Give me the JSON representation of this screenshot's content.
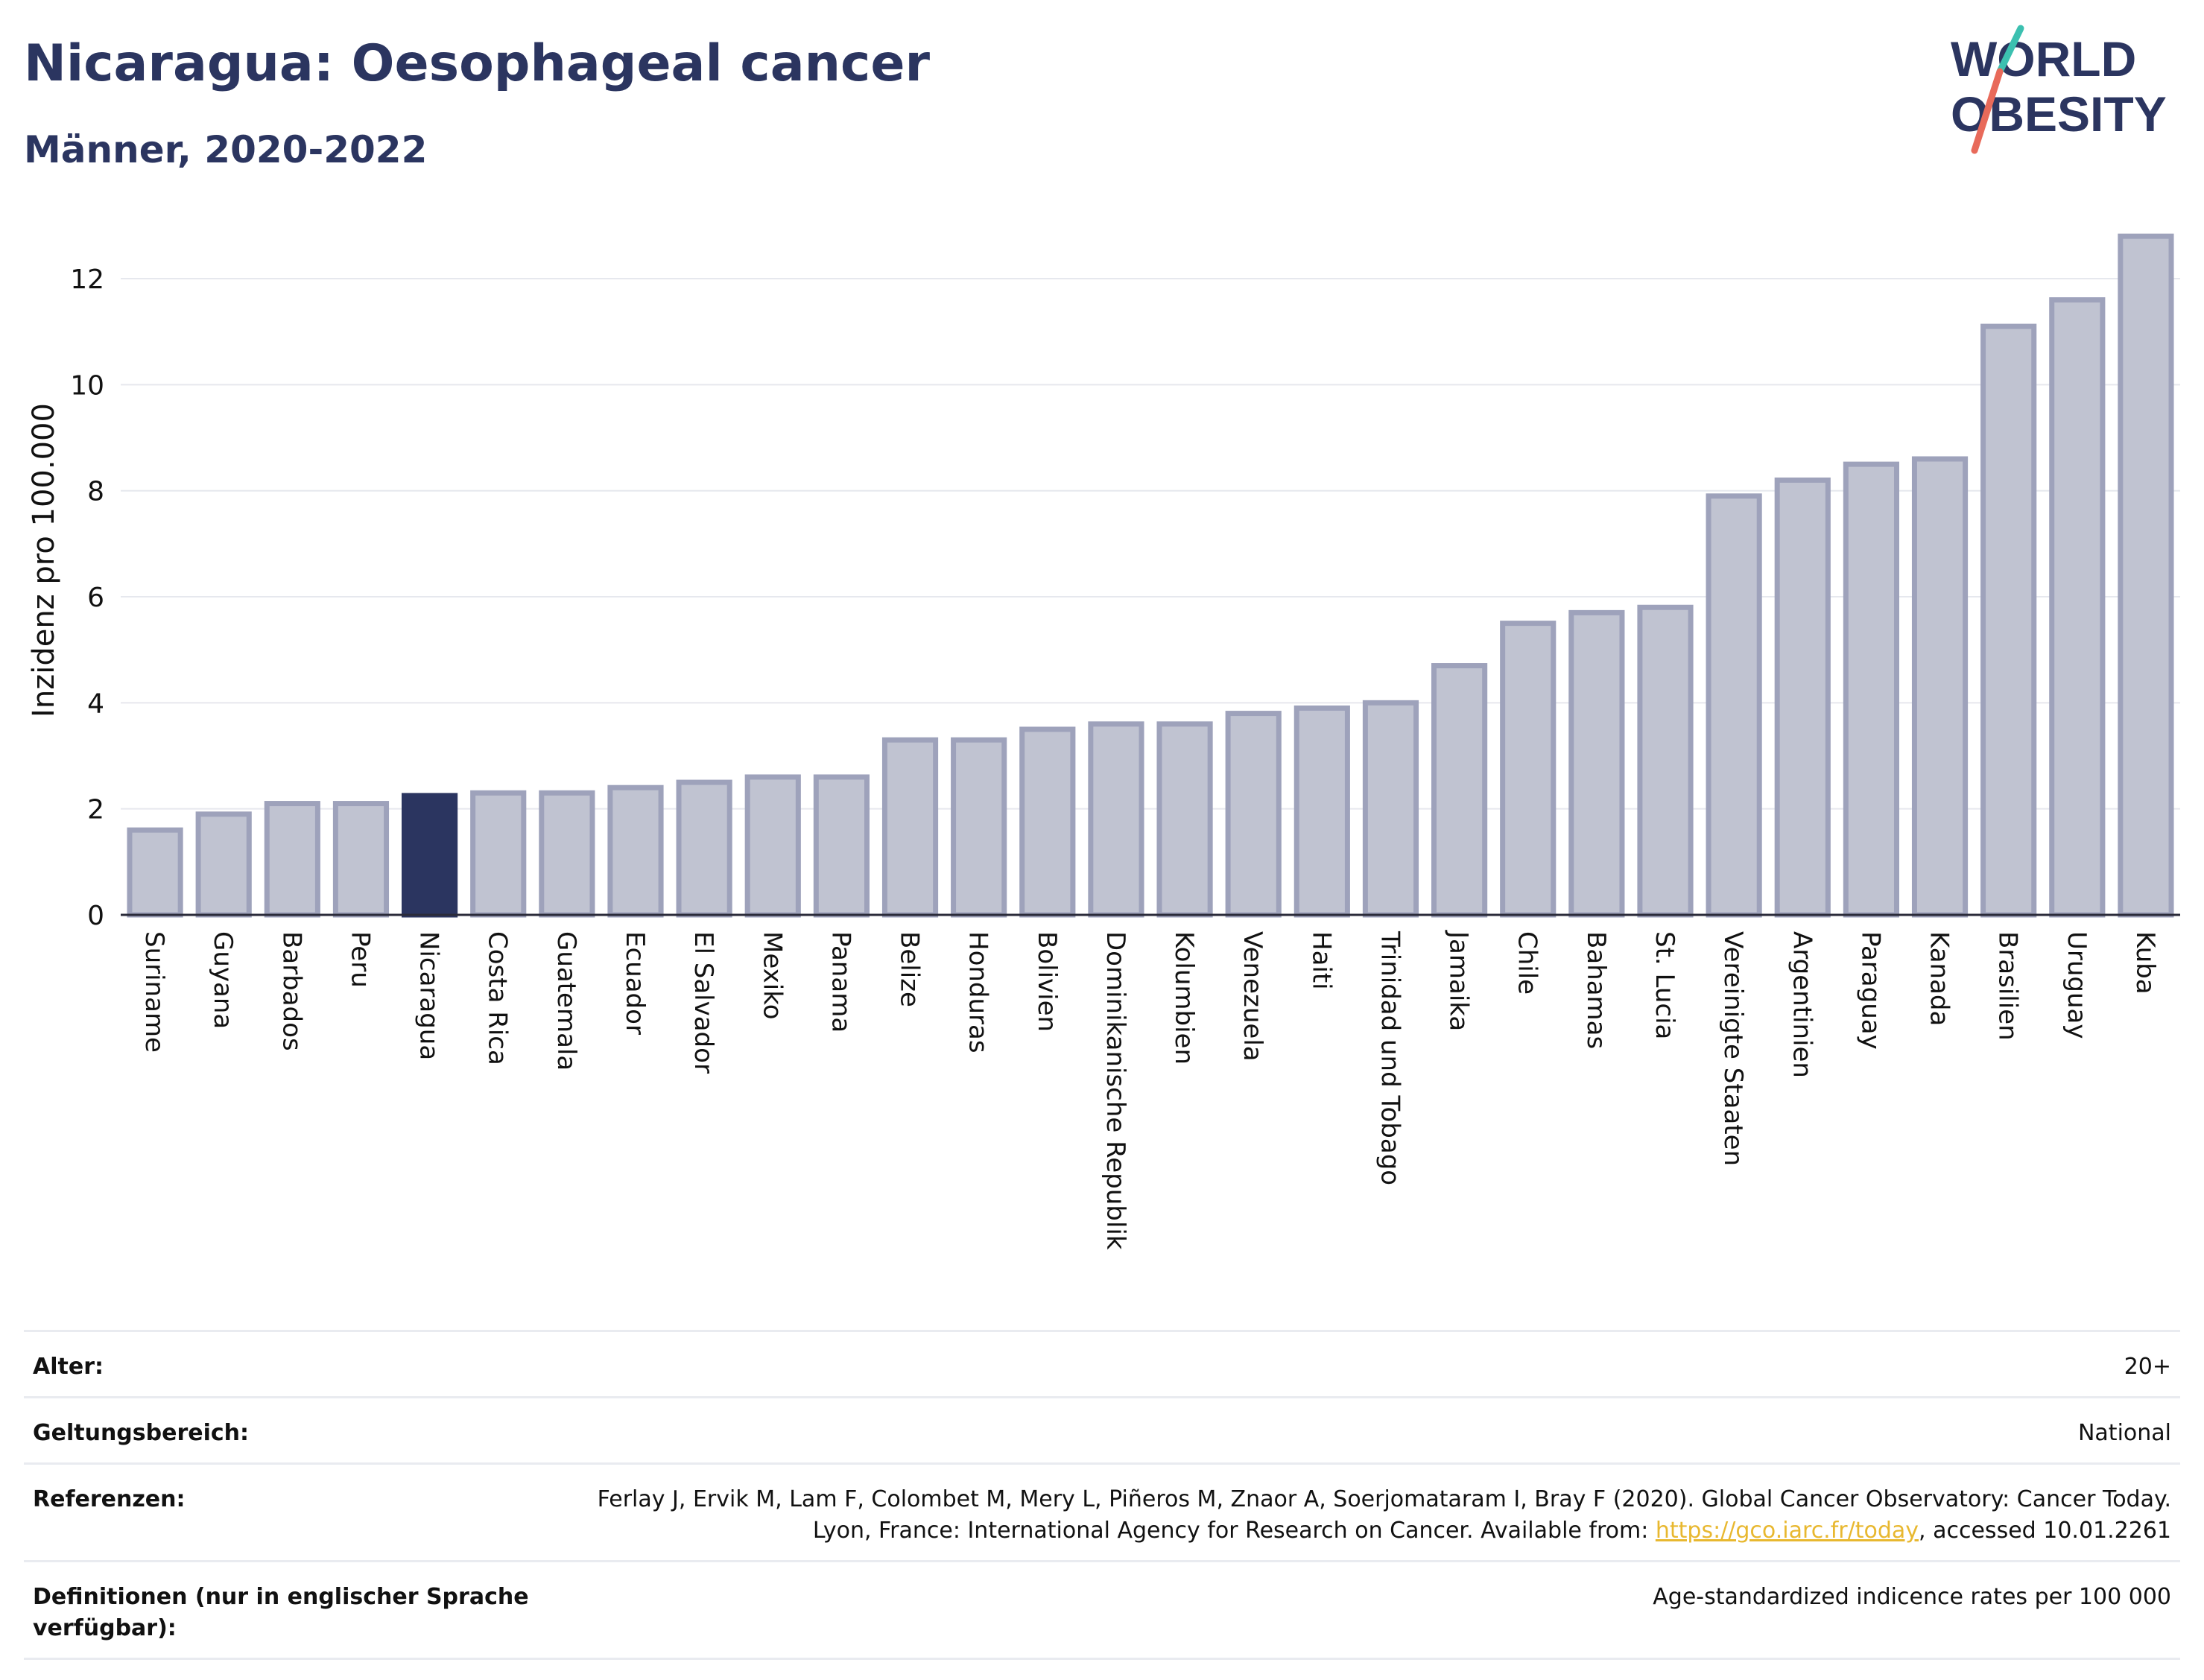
{
  "header": {
    "title": "Nicaragua: Oesophageal cancer",
    "subtitle": "Männer, 2020-2022"
  },
  "logo": {
    "line1": "WORLD",
    "line2": "OBESITY"
  },
  "colors": {
    "title": "#2b3560",
    "bar_fill": "#c0c3d1",
    "bar_stroke": "#9ea2bb",
    "highlight_bar": "#2b3560",
    "gridline": "#e6e8ee",
    "link": "#e8b830",
    "logo_slash_top": "#3cc0b0",
    "logo_slash_bottom": "#e86a5a"
  },
  "chart_data": {
    "type": "bar",
    "title": "Nicaragua: Oesophageal cancer",
    "subtitle": "Männer, 2020-2022",
    "xlabel": "",
    "ylabel": "Inzidenz pro 100.000",
    "ylim": [
      0,
      12.9
    ],
    "yticks": [
      0,
      2,
      4,
      6,
      8,
      10,
      12
    ],
    "grid": true,
    "highlight": "Nicaragua",
    "categories": [
      "Suriname",
      "Guyana",
      "Barbados",
      "Peru",
      "Nicaragua",
      "Costa Rica",
      "Guatemala",
      "Ecuador",
      "El Salvador",
      "Mexiko",
      "Panama",
      "Belize",
      "Honduras",
      "Bolivien",
      "Dominikanische Republik",
      "Kolumbien",
      "Venezuela",
      "Haiti",
      "Trinidad und Tobago",
      "Jamaika",
      "Chile",
      "Bahamas",
      "St. Lucia",
      "Vereinigte Staaten",
      "Argentinien",
      "Paraguay",
      "Kanada",
      "Brasilien",
      "Uruguay",
      "Kuba"
    ],
    "values": [
      1.6,
      1.9,
      2.1,
      2.1,
      2.25,
      2.3,
      2.3,
      2.4,
      2.5,
      2.6,
      2.6,
      3.3,
      3.3,
      3.5,
      3.6,
      3.6,
      3.8,
      3.9,
      4.0,
      4.7,
      5.5,
      5.7,
      5.8,
      7.9,
      8.2,
      8.5,
      8.6,
      11.1,
      11.6,
      12.8
    ]
  },
  "meta": {
    "rows": [
      {
        "label": "Alter:",
        "value": "20+"
      },
      {
        "label": "Geltungsbereich:",
        "value": "National"
      }
    ],
    "references": {
      "label": "Referenzen:",
      "text_before": "Ferlay J, Ervik M, Lam F, Colombet M, Mery L, Piñeros M, Znaor A, Soerjomataram I, Bray F (2020). Global Cancer Observatory: Cancer Today. Lyon, France: International Agency for Research on Cancer. Available from: ",
      "link": "https://gco.iarc.fr/today",
      "text_after": ", accessed 10.01.2261"
    },
    "definitions": {
      "label": "Definitionen (nur in englischer Sprache verfügbar):",
      "value": "Age-standardized indicence rates per 100 000"
    }
  }
}
